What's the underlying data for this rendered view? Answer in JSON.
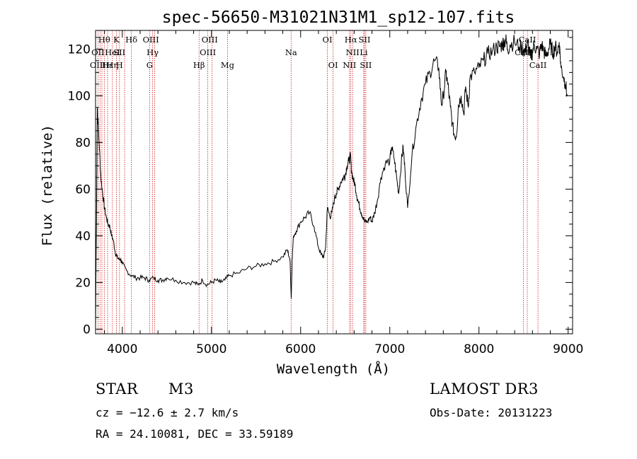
{
  "chart_data": {
    "type": "line",
    "title": "spec-56650-M31021N31M1_sp12-107.fits",
    "xlabel": "Wavelength (Å)",
    "ylabel": "Flux (relative)",
    "xlim": [
      3700,
      9050
    ],
    "ylim": [
      -2,
      128
    ],
    "xticks": [
      4000,
      5000,
      6000,
      7000,
      8000,
      9000
    ],
    "yticks": [
      0,
      20,
      40,
      60,
      80,
      100,
      120
    ],
    "x": [
      3700,
      3720,
      3740,
      3760,
      3780,
      3800,
      3820,
      3840,
      3860,
      3880,
      3900,
      3920,
      3940,
      3960,
      3980,
      4000,
      4050,
      4100,
      4150,
      4200,
      4250,
      4300,
      4350,
      4400,
      4450,
      4500,
      4600,
      4700,
      4800,
      4850,
      4900,
      4950,
      5000,
      5050,
      5100,
      5150,
      5200,
      5300,
      5400,
      5500,
      5600,
      5700,
      5800,
      5850,
      5880,
      5895,
      5905,
      5920,
      5950,
      6000,
      6050,
      6100,
      6150,
      6200,
      6230,
      6260,
      6280,
      6300,
      6330,
      6350,
      6380,
      6400,
      6420,
      6450,
      6480,
      6500,
      6520,
      6540,
      6560,
      6570,
      6590,
      6610,
      6630,
      6650,
      6680,
      6700,
      6720,
      6750,
      6780,
      6800,
      6830,
      6860,
      6900,
      6950,
      7000,
      7020,
      7050,
      7080,
      7100,
      7130,
      7150,
      7170,
      7200,
      7250,
      7300,
      7350,
      7400,
      7450,
      7500,
      7550,
      7580,
      7600,
      7630,
      7650,
      7680,
      7700,
      7730,
      7750,
      7770,
      7800,
      7830,
      7850,
      7880,
      7900,
      7950,
      8000,
      8050,
      8100,
      8150,
      8200,
      8230,
      8260,
      8280,
      8300,
      8320,
      8350,
      8400,
      8450,
      8500,
      8520,
      8540,
      8560,
      8580,
      8600,
      8620,
      8650,
      8680,
      8700,
      8730,
      8750,
      8780,
      8800,
      8830,
      8850,
      8880,
      8900,
      8920,
      8950,
      8970,
      8990
    ],
    "values": [
      0,
      95,
      80,
      65,
      58,
      52,
      48,
      45,
      44,
      40,
      38,
      33,
      31,
      30,
      30,
      28,
      25,
      23,
      22,
      22,
      22,
      21,
      22,
      21,
      21,
      22,
      21,
      20,
      20,
      19,
      21,
      19,
      20,
      21,
      20,
      21,
      23,
      24,
      26,
      27,
      28,
      29,
      31,
      34,
      30,
      13,
      30,
      40,
      42,
      46,
      48,
      50,
      44,
      35,
      32,
      31,
      35,
      52,
      48,
      50,
      56,
      58,
      60,
      63,
      65,
      66,
      70,
      72,
      74,
      68,
      64,
      62,
      57,
      54,
      50,
      48,
      46,
      46,
      48,
      46,
      50,
      55,
      65,
      71,
      72,
      78,
      73,
      64,
      58,
      72,
      78,
      68,
      52,
      75,
      88,
      98,
      105,
      110,
      115,
      112,
      96,
      100,
      110,
      105,
      95,
      88,
      82,
      84,
      96,
      100,
      92,
      104,
      95,
      108,
      110,
      112,
      115,
      118,
      119,
      121,
      121,
      122,
      123,
      124,
      120,
      122,
      123,
      121,
      120,
      119,
      122,
      120,
      116,
      119,
      122,
      120,
      118,
      122,
      119,
      117,
      120,
      122,
      118,
      121,
      119,
      123,
      112,
      108,
      105,
      100
    ]
  },
  "lines": [
    {
      "label": "Hθ",
      "x": 3798,
      "row": 1
    },
    {
      "label": "OII",
      "x": 3727,
      "row": 2
    },
    {
      "label": "OIII",
      "x": 3727,
      "row": 3
    },
    {
      "label": "Hε",
      "x": 3835,
      "row": 3
    },
    {
      "label": "K",
      "x": 3934,
      "row": 1
    },
    {
      "label": "HeI",
      "x": 3889,
      "row": 2
    },
    {
      "label": "Hη",
      "x": 3889,
      "row": 3
    },
    {
      "label": "SII",
      "x": 3968,
      "row": 2
    },
    {
      "label": "H",
      "x": 3968,
      "row": 3
    },
    {
      "label": "Hδ",
      "x": 4102,
      "row": 1
    },
    {
      "label": "OIII",
      "x": 4320,
      "row": 1
    },
    {
      "label": "Hγ",
      "x": 4340,
      "row": 2
    },
    {
      "label": "G",
      "x": 4306,
      "row": 3
    },
    {
      "label": "OIII",
      "x": 4980,
      "row": 1
    },
    {
      "label": "OIII",
      "x": 4959,
      "row": 2
    },
    {
      "label": "Hβ",
      "x": 4861,
      "row": 3
    },
    {
      "label": "Mg",
      "x": 5180,
      "row": 3
    },
    {
      "label": "Na",
      "x": 5893,
      "row": 2
    },
    {
      "label": "OI",
      "x": 6300,
      "row": 1
    },
    {
      "label": "OI",
      "x": 6364,
      "row": 3
    },
    {
      "label": "Hα",
      "x": 6563,
      "row": 1
    },
    {
      "label": "SII",
      "x": 6716,
      "row": 1
    },
    {
      "label": "NII",
      "x": 6583,
      "row": 2
    },
    {
      "label": "Li",
      "x": 6708,
      "row": 2
    },
    {
      "label": "NII",
      "x": 6548,
      "row": 3
    },
    {
      "label": "SII",
      "x": 6731,
      "row": 3
    },
    {
      "label": "CaII",
      "x": 8542,
      "row": 1
    },
    {
      "label": "CaII",
      "x": 8498,
      "row": 2
    },
    {
      "label": "CaII",
      "x": 8662,
      "row": 3
    }
  ],
  "line_positions": [
    3727,
    3750,
    3771,
    3798,
    3835,
    3889,
    3934,
    3968,
    4026,
    4102,
    4306,
    4340,
    4363,
    4861,
    4959,
    5007,
    5180,
    5893,
    6300,
    6364,
    6548,
    6563,
    6583,
    6708,
    6716,
    6731,
    8498,
    8542,
    8662
  ],
  "colors": {
    "guide": "#cc2222",
    "spectrum": "#000000",
    "axis": "#000000"
  },
  "info": {
    "class_label": "STAR",
    "subclass": "M3",
    "survey": "LAMOST DR3",
    "cz": "cz = −12.6 ± 2.7 km/s",
    "obs_date": "Obs-Date: 20131223",
    "coords": "RA =  24.10081, DEC =  33.59189"
  }
}
